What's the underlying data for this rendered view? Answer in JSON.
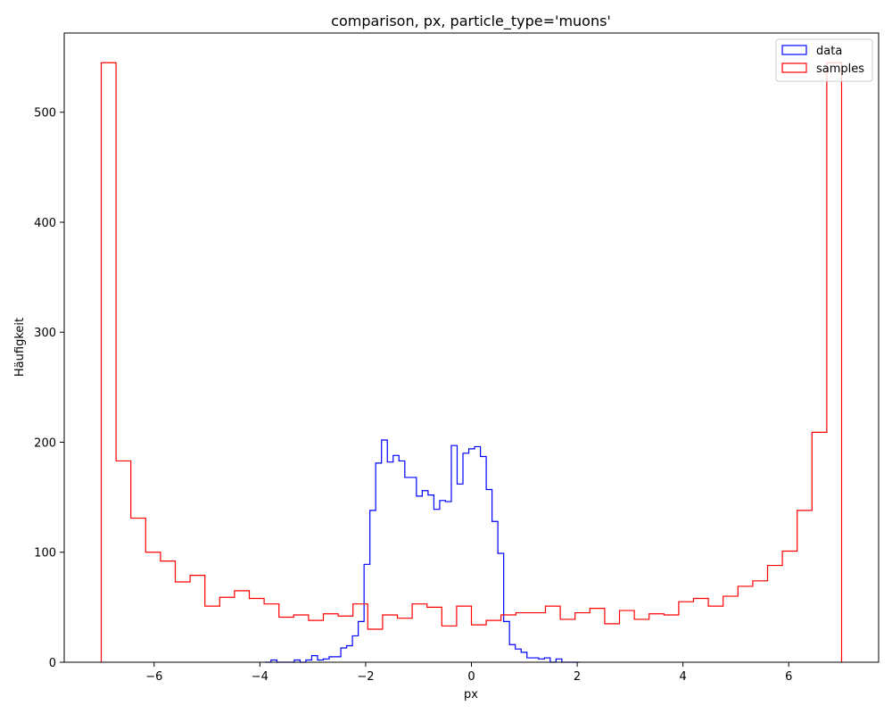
{
  "chart_data": {
    "type": "histogram",
    "title": "comparison, px, particle_type='muons'",
    "xlabel": "px",
    "ylabel": "Häufigkeit",
    "xlim": [
      -7.7,
      7.7
    ],
    "ylim": [
      0,
      572
    ],
    "xticks": [
      -6,
      -4,
      -2,
      0,
      2,
      4,
      6
    ],
    "xtick_labels": [
      "−6",
      "−4",
      "−2",
      "0",
      "2",
      "4",
      "6"
    ],
    "yticks": [
      0,
      100,
      200,
      300,
      400,
      500
    ],
    "ytick_labels": [
      "0",
      "100",
      "200",
      "300",
      "400",
      "500"
    ],
    "grid": false,
    "legend_position": "top-right",
    "series": [
      {
        "name": "data",
        "color": "#0000ff",
        "histtype": "step",
        "bin_start": -3.9,
        "bin_width": 0.11,
        "values": [
          0,
          2,
          0,
          0,
          0,
          2,
          0,
          2,
          6,
          2,
          3,
          5,
          5,
          13,
          15,
          24,
          37,
          89,
          138,
          181,
          202,
          182,
          188,
          183,
          168,
          168,
          151,
          156,
          152,
          139,
          147,
          146,
          197,
          162,
          190,
          194,
          196,
          187,
          157,
          128,
          99,
          37,
          16,
          12,
          9,
          4,
          4,
          3,
          4,
          0,
          3,
          0,
          0,
          0
        ]
      },
      {
        "name": "samples",
        "color": "#ff0000",
        "histtype": "step",
        "bin_start": -7.0,
        "bin_width": 0.28,
        "values": [
          545,
          183,
          131,
          100,
          92,
          73,
          79,
          51,
          59,
          65,
          58,
          53,
          41,
          43,
          38,
          44,
          42,
          53,
          30,
          43,
          40,
          53,
          50,
          33,
          51,
          34,
          38,
          43,
          45,
          45,
          51,
          39,
          45,
          49,
          35,
          47,
          39,
          44,
          43,
          55,
          58,
          51,
          60,
          69,
          74,
          88,
          101,
          138,
          209,
          545
        ]
      }
    ]
  }
}
